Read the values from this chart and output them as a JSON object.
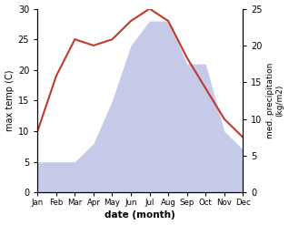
{
  "months": [
    "Jan",
    "Feb",
    "Mar",
    "Apr",
    "May",
    "Jun",
    "Jul",
    "Aug",
    "Sep",
    "Oct",
    "Nov",
    "Dec"
  ],
  "temperature": [
    10,
    19,
    25,
    24,
    25,
    28,
    30,
    28,
    22,
    17,
    12,
    9
  ],
  "precipitation": [
    5,
    5,
    5,
    8,
    15,
    24,
    28,
    28,
    21,
    21,
    10,
    7
  ],
  "temp_color": "#c0392b",
  "precip_color_fill": "#c5cae9",
  "ylabel_left": "max temp (C)",
  "ylabel_right": "med. precipitation\n(kg/m2)",
  "xlabel": "date (month)",
  "ylim_left": [
    0,
    30
  ],
  "ylim_right": [
    0,
    25
  ],
  "yticks_left": [
    0,
    5,
    10,
    15,
    20,
    25,
    30
  ],
  "yticks_right": [
    0,
    5,
    10,
    15,
    20,
    25
  ],
  "background_color": "#ffffff"
}
